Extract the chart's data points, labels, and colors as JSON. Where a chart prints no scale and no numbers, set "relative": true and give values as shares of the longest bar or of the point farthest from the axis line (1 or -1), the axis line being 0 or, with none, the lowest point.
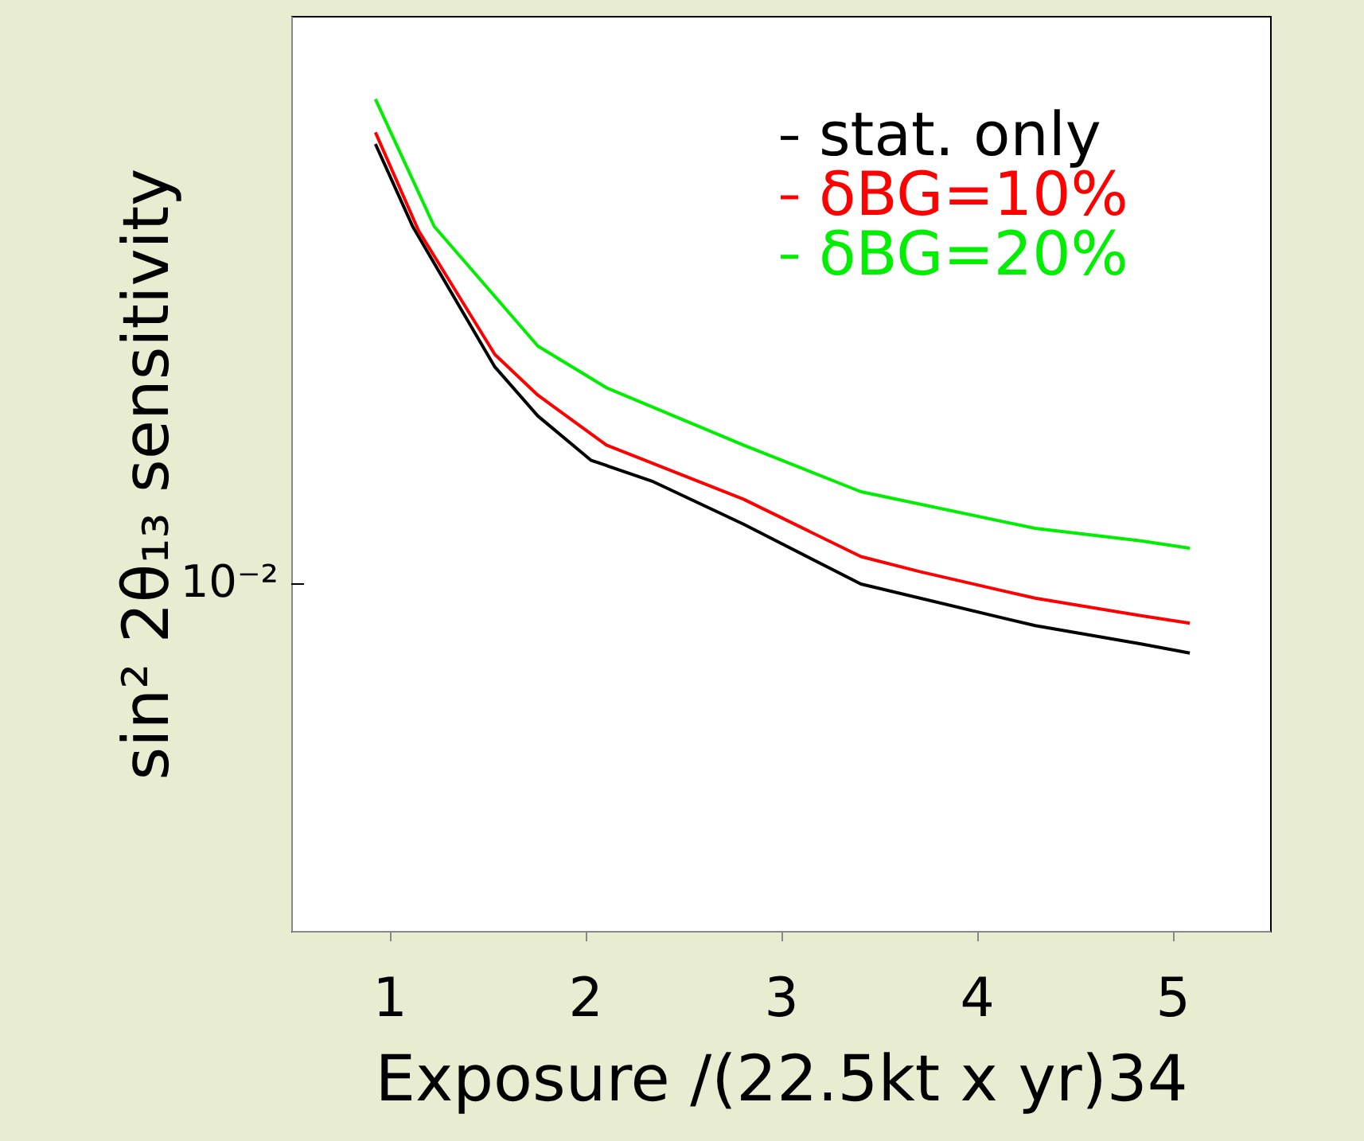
{
  "chart_data": {
    "type": "line",
    "xlabel": "Exposure /(22.5kt x yr)34",
    "ylabel": "sin² 2θ₁₃ sensitivity",
    "relative": true,
    "xlim": [
      0.5,
      5.5
    ],
    "xticks": [
      1,
      2,
      3,
      4,
      5
    ],
    "annotations": [
      "10⁻²"
    ],
    "legend": "top right",
    "grid": false,
    "series": [
      {
        "name": "stat. only",
        "color": "#000000",
        "x": [
          0.93,
          1.12,
          1.54,
          1.76,
          2.03,
          2.35,
          2.81,
          3.41,
          4.3,
          4.84,
          5.09
        ],
        "values": [
          0.946,
          0.847,
          0.678,
          0.619,
          0.566,
          0.54,
          0.489,
          0.417,
          0.367,
          0.345,
          0.334
        ]
      },
      {
        "name": "δBG=10%",
        "color": "#ff0000",
        "x": [
          0.93,
          1.15,
          1.54,
          1.76,
          2.11,
          2.81,
          3.41,
          3.71,
          4.3,
          4.84,
          5.09
        ],
        "values": [
          0.96,
          0.842,
          0.693,
          0.644,
          0.584,
          0.519,
          0.45,
          0.432,
          0.4,
          0.379,
          0.37
        ]
      },
      {
        "name": "δBG=20%",
        "color": "#00ee00",
        "x": [
          0.93,
          1.23,
          1.76,
          2.11,
          2.81,
          3.41,
          4.3,
          4.84,
          5.09
        ],
        "values": [
          1,
          0.847,
          0.703,
          0.653,
          0.584,
          0.528,
          0.484,
          0.469,
          0.46
        ]
      }
    ]
  }
}
